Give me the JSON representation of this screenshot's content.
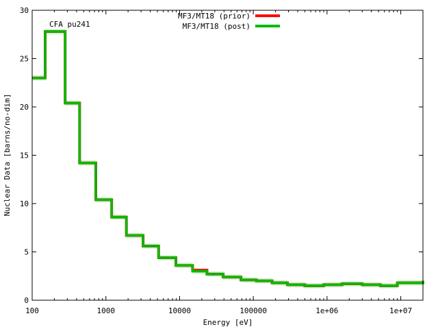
{
  "chart_data": {
    "type": "line",
    "step": true,
    "annotation": "CFA pu241",
    "xlabel": "Energy [eV]",
    "ylabel": "Nuclear Data [barns/no-dim]",
    "x_scale": "log",
    "xlim": [
      100,
      20000000
    ],
    "ylim": [
      0,
      30
    ],
    "x_ticks": [
      {
        "value": 100,
        "label": "100"
      },
      {
        "value": 1000,
        "label": "1000"
      },
      {
        "value": 10000,
        "label": "10000"
      },
      {
        "value": 100000,
        "label": "100000"
      },
      {
        "value": 1000000,
        "label": "1e+06"
      },
      {
        "value": 10000000,
        "label": "1e+07"
      }
    ],
    "y_ticks": [
      {
        "value": 0,
        "label": "0"
      },
      {
        "value": 5,
        "label": "5"
      },
      {
        "value": 10,
        "label": "10"
      },
      {
        "value": 15,
        "label": "15"
      },
      {
        "value": 20,
        "label": "20"
      },
      {
        "value": 25,
        "label": "25"
      },
      {
        "value": 30,
        "label": "30"
      }
    ],
    "legend_position": "top-right",
    "grid": false,
    "bin_edges": [
      100,
      150,
      280,
      440,
      730,
      1200,
      1900,
      3200,
      5200,
      8900,
      15000,
      23500,
      39000,
      68000,
      110000,
      180000,
      290000,
      500000,
      900000,
      1600000,
      3000000,
      5300000,
      9000000,
      20000000
    ],
    "series": [
      {
        "name": "MF3/MT18 (prior)",
        "color": "#ff0000",
        "values": [
          23.0,
          27.8,
          20.4,
          14.2,
          10.4,
          8.6,
          6.7,
          5.6,
          4.4,
          3.6,
          3.1,
          2.7,
          2.4,
          2.1,
          2.0,
          1.8,
          1.6,
          1.5,
          1.6,
          1.7,
          1.6,
          1.5,
          1.8,
          2.0
        ]
      },
      {
        "name": "MF3/MT18 (post)",
        "color": "#00bb00",
        "values": [
          23.0,
          27.8,
          20.4,
          14.2,
          10.4,
          8.6,
          6.7,
          5.6,
          4.4,
          3.6,
          3.0,
          2.7,
          2.4,
          2.1,
          2.0,
          1.8,
          1.6,
          1.5,
          1.6,
          1.7,
          1.6,
          1.5,
          1.8,
          2.0
        ]
      }
    ]
  }
}
